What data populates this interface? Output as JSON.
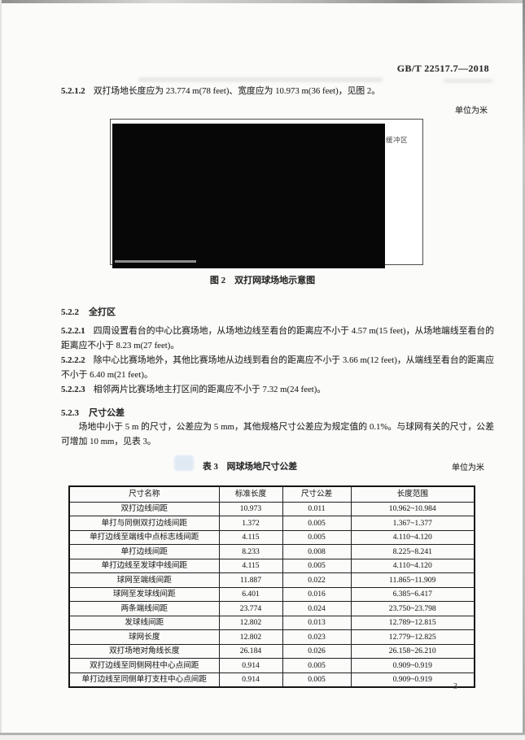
{
  "header": {
    "standard_code": "GB/T 22517.7—2018"
  },
  "para_5212": {
    "num": "5.2.1.2",
    "text": "双打场地长度应为 23.774 m(78 feet)、宽度应为 10.973 m(36 feet)，见图 2。"
  },
  "figure": {
    "unit_note": "单位为米",
    "buffer_label": "缓冲区",
    "caption": "图 2　双打网球场地示意图"
  },
  "sec_522": {
    "num": "5.2.2",
    "title": "全打区"
  },
  "para_5221": {
    "num": "5.2.2.1",
    "text": "四周设置看台的中心比赛场地，从场地边线至看台的距离应不小于 4.57 m(15 feet)，从场地端线至看台的距离应不小于 8.23 m(27 feet)。"
  },
  "para_5222": {
    "num": "5.2.2.2",
    "text": "除中心比赛场地外，其他比赛场地从边线到看台的距离应不小于 3.66 m(12 feet)，从端线至看台的距离应不小于 6.40 m(21 feet)。"
  },
  "para_5223": {
    "num": "5.2.2.3",
    "text": "相邻两片比赛场地主打区间的距离应不小于 7.32 m(24 feet)。"
  },
  "sec_523": {
    "num": "5.2.3",
    "title": "尺寸公差"
  },
  "para_523": "场地中小于 5 m 的尺寸，公差应为 5 mm，其他规格尺寸公差应为规定值的 0.1%。与球网有关的尺寸，公差可增加 10 mm，见表 3。",
  "table": {
    "caption": "表 3　网球场地尺寸公差",
    "unit_note": "单位为米",
    "headers": [
      "尺寸名称",
      "标准长度",
      "尺寸公差",
      "长度范围"
    ],
    "rows": [
      [
        "双打边线间距",
        "10.973",
        "0.011",
        "10.962~10.984"
      ],
      [
        "单打与同侧双打边线间距",
        "1.372",
        "0.005",
        "1.367~1.377"
      ],
      [
        "单打边线至端线中点标志线间距",
        "4.115",
        "0.005",
        "4.110~4.120"
      ],
      [
        "单打边线间距",
        "8.233",
        "0.008",
        "8.225~8.241"
      ],
      [
        "单打边线至发球中线间距",
        "4.115",
        "0.005",
        "4.110~4.120"
      ],
      [
        "球网至端线间距",
        "11.887",
        "0.022",
        "11.865~11.909"
      ],
      [
        "球网至发球线间距",
        "6.401",
        "0.016",
        "6.385~6.417"
      ],
      [
        "两条端线间距",
        "23.774",
        "0.024",
        "23.750~23.798"
      ],
      [
        "发球线间距",
        "12.802",
        "0.013",
        "12.789~12.815"
      ],
      [
        "球网长度",
        "12.802",
        "0.023",
        "12.779~12.825"
      ],
      [
        "双打场地对角线长度",
        "26.184",
        "0.026",
        "26.158~26.210"
      ],
      [
        "双打边线至同侧网柱中心点间距",
        "0.914",
        "0.005",
        "0.909~0.919"
      ],
      [
        "单打边线至同侧单打支柱中心点间距",
        "0.914",
        "0.005",
        "0.909~0.919"
      ]
    ]
  },
  "footer": {
    "page_number": "3"
  }
}
